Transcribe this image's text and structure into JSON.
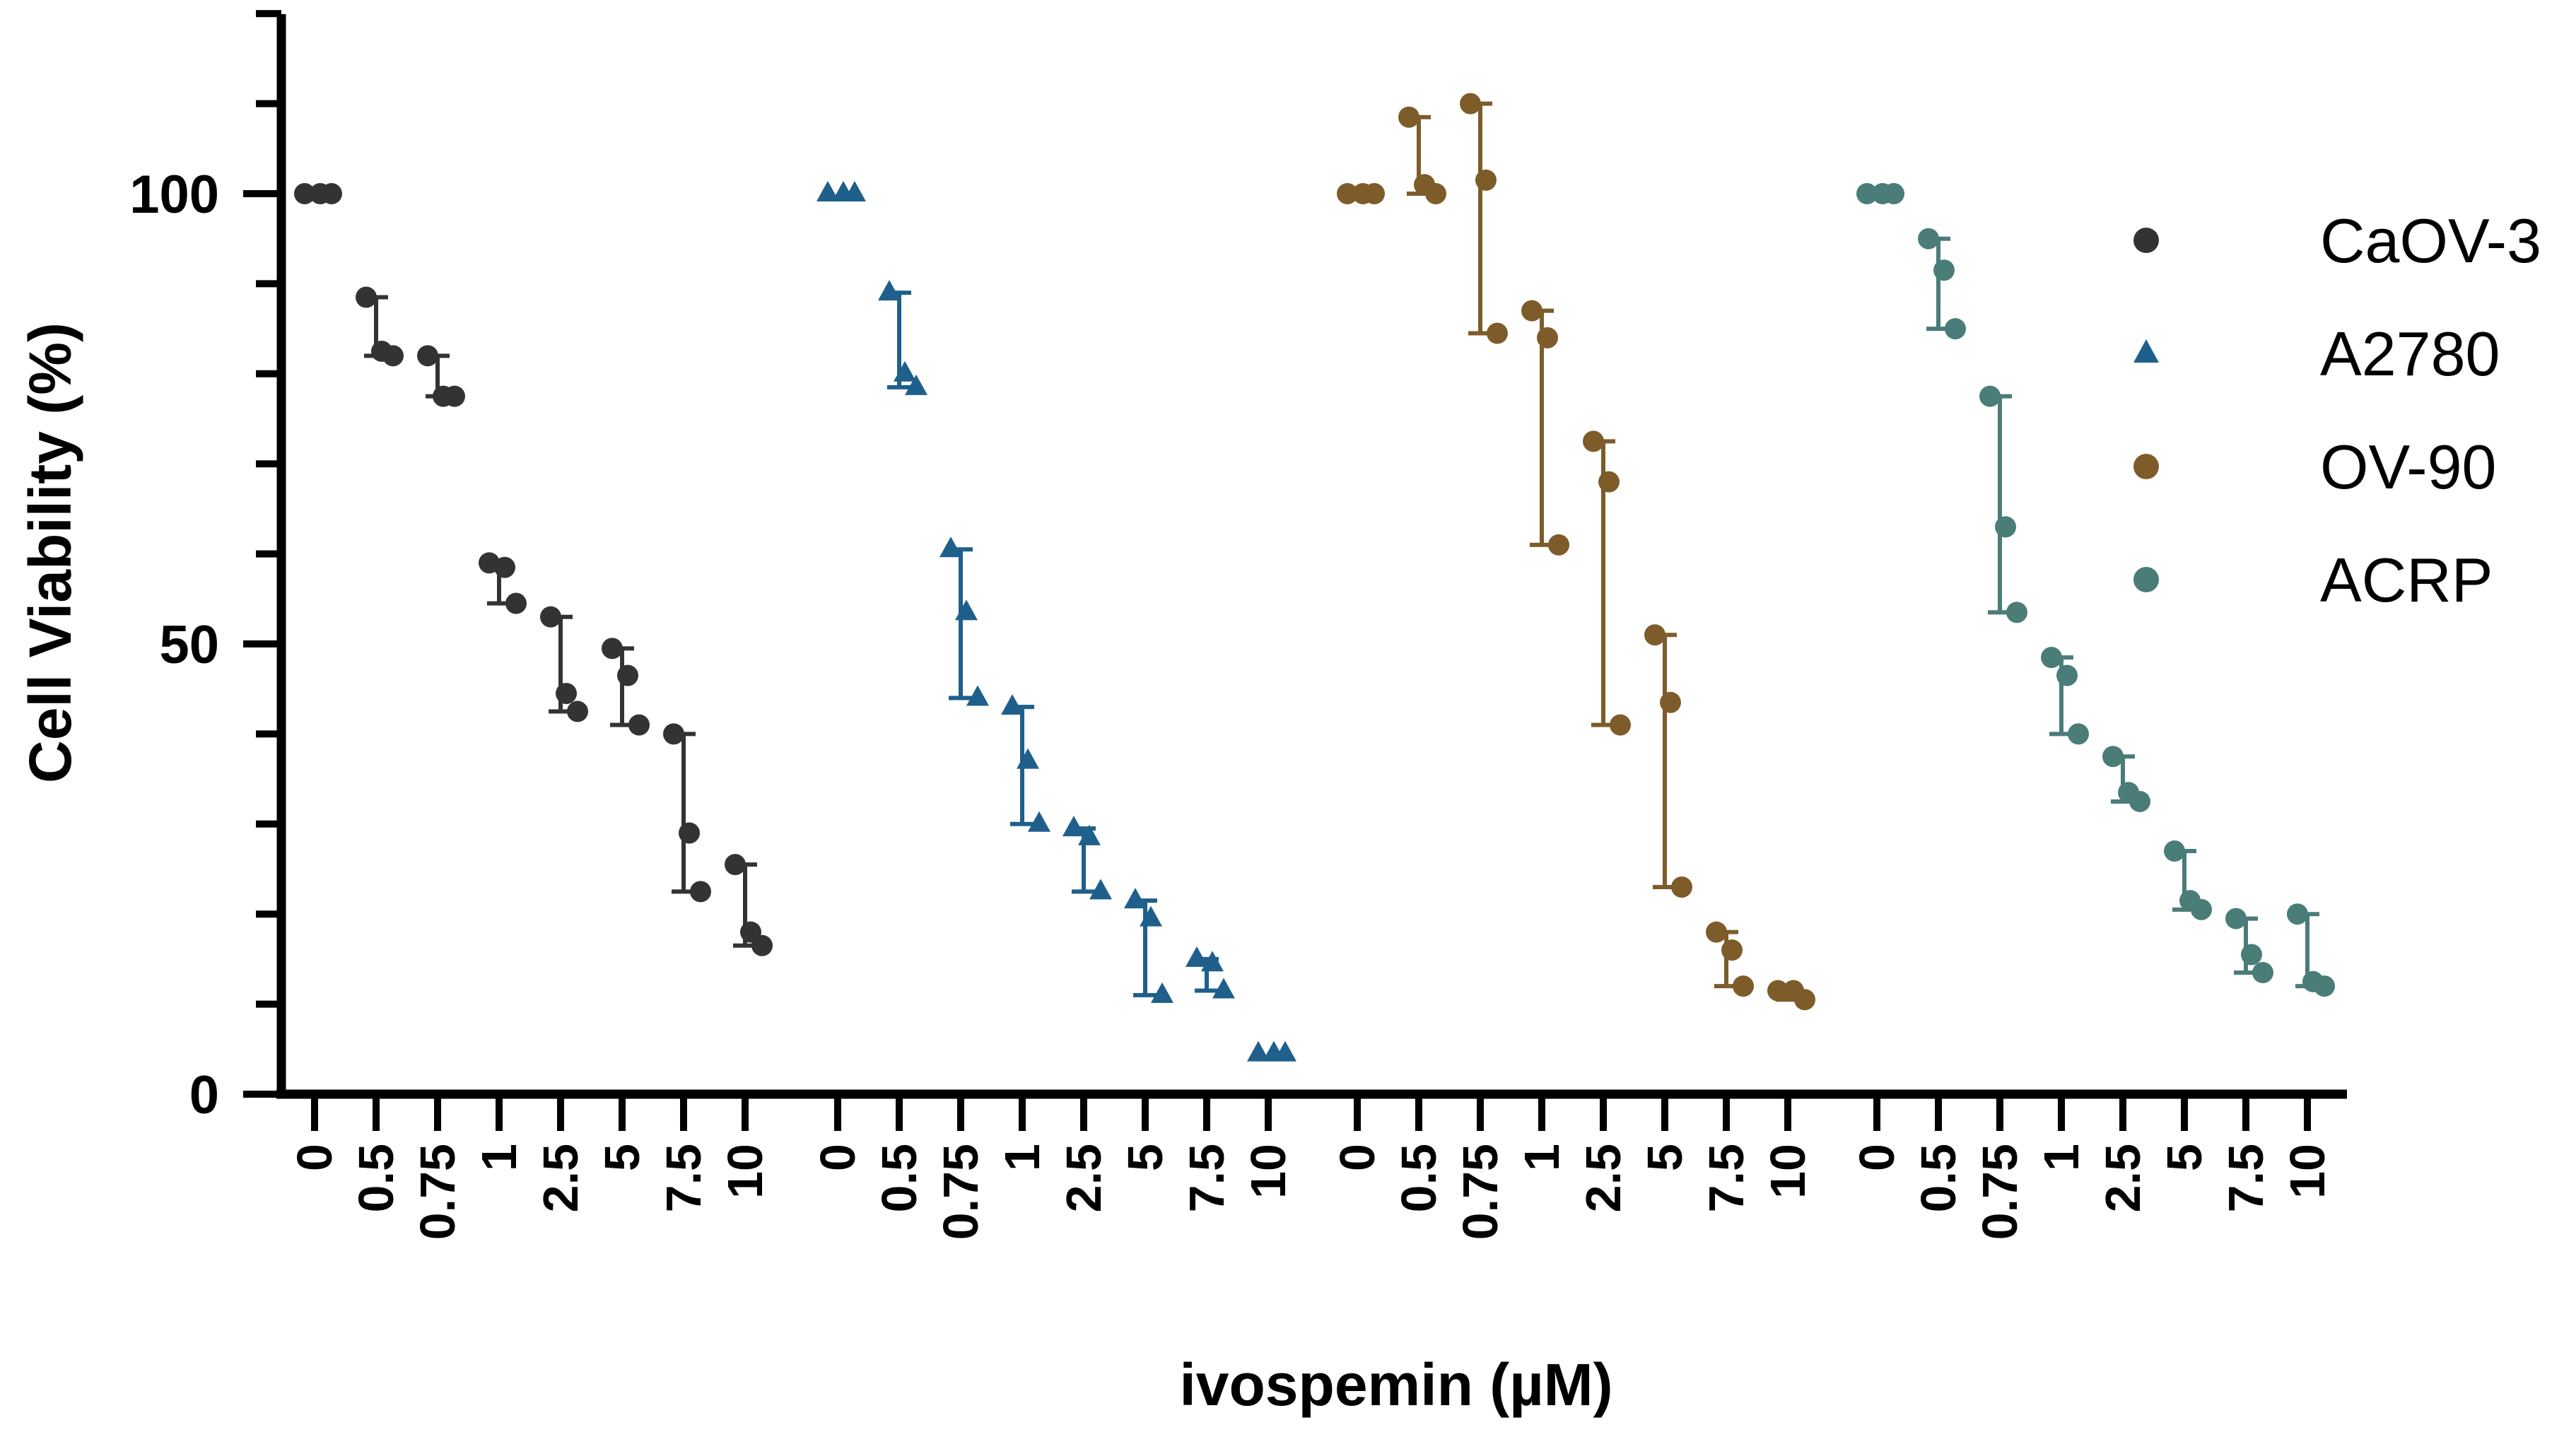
{
  "chart_data": {
    "type": "scatter",
    "subtype": "grouped dose-response with individual replicates and range error bars",
    "title": "",
    "xlabel": "ivospemin (µM)",
    "ylabel": "Cell Viability (%)",
    "ylim": [
      0,
      120
    ],
    "yticks": [
      0,
      50,
      100
    ],
    "legend_position": "right",
    "categories": [
      "0",
      "0.5",
      "0.75",
      "1",
      "2.5",
      "5",
      "7.5",
      "10"
    ],
    "series": [
      {
        "name": "CaOV-3",
        "color": "#333333",
        "marker": "circle",
        "points": [
          [
            100,
            100,
            100
          ],
          [
            88.5,
            82.5,
            82
          ],
          [
            82,
            77.5,
            77.5
          ],
          [
            59,
            58.5,
            54.5
          ],
          [
            53,
            44.5,
            42.5
          ],
          [
            49.5,
            46.5,
            41
          ],
          [
            40,
            29,
            22.5
          ],
          [
            25.5,
            18,
            16.5
          ]
        ]
      },
      {
        "name": "A2780",
        "color": "#1f5f8b",
        "marker": "triangle",
        "points": [
          [
            100,
            100,
            100
          ],
          [
            89,
            80,
            78.5
          ],
          [
            60.5,
            53.5,
            44
          ],
          [
            43,
            37,
            30
          ],
          [
            29.5,
            28.5,
            22.5
          ],
          [
            21.5,
            19.5,
            11
          ],
          [
            15,
            14.5,
            11.5
          ],
          [
            4.5,
            4.5,
            4.5
          ]
        ]
      },
      {
        "name": "OV-90",
        "color": "#7d5c2a",
        "marker": "circle",
        "points": [
          [
            100,
            100,
            100
          ],
          [
            108.5,
            101,
            100
          ],
          [
            110,
            101.5,
            84.5
          ],
          [
            87,
            84,
            61
          ],
          [
            72.5,
            68,
            41
          ],
          [
            51,
            43.5,
            23
          ],
          [
            18,
            16,
            12
          ],
          [
            11.5,
            11.5,
            10.5
          ]
        ]
      },
      {
        "name": "ACRP",
        "color": "#4a7c78",
        "marker": "circle",
        "points": [
          [
            100,
            100,
            100
          ],
          [
            95,
            91.5,
            85
          ],
          [
            77.5,
            63,
            53.5
          ],
          [
            48.5,
            46.5,
            40
          ],
          [
            37.5,
            33.5,
            32.5
          ],
          [
            27,
            21.5,
            20.5
          ],
          [
            19.5,
            15.5,
            13.5
          ],
          [
            20,
            12.5,
            12
          ]
        ]
      }
    ]
  }
}
